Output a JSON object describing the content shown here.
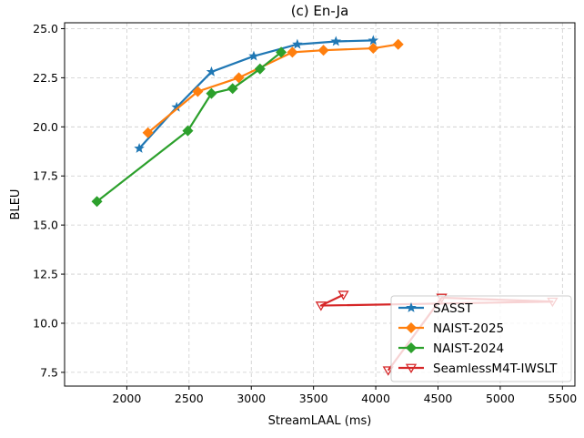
{
  "chart_data": {
    "type": "line",
    "title": "(c) En-Ja",
    "xlabel": "StreamLAAL (ms)",
    "ylabel": "BLEU",
    "xlim": [
      1500,
      5600
    ],
    "ylim": [
      6.8,
      25.3
    ],
    "xticks": [
      2000,
      2500,
      3000,
      3500,
      4000,
      4500,
      5000,
      5500
    ],
    "yticks": [
      7.5,
      10.0,
      12.5,
      15.0,
      17.5,
      20.0,
      22.5,
      25.0
    ],
    "xtick_labels": [
      "2000",
      "2500",
      "3000",
      "3500",
      "4000",
      "4500",
      "5000",
      "5500"
    ],
    "ytick_labels": [
      "7.5",
      "10.0",
      "12.5",
      "15.0",
      "17.5",
      "20.0",
      "22.5",
      "25.0"
    ],
    "grid": true,
    "legend_position": "lower-right",
    "series": [
      {
        "name": "SASST",
        "color": "#1f77b4",
        "marker": "star",
        "x": [
          2100,
          2400,
          2680,
          3020,
          3370,
          3680,
          3980
        ],
        "y": [
          18.9,
          21.0,
          22.8,
          23.6,
          24.2,
          24.35,
          24.4
        ]
      },
      {
        "name": "NAIST-2025",
        "color": "#ff7f0e",
        "marker": "diamond",
        "x": [
          2170,
          2570,
          2900,
          3330,
          3580,
          3980,
          4180
        ],
        "y": [
          19.7,
          21.8,
          22.5,
          23.8,
          23.9,
          24.0,
          24.2
        ]
      },
      {
        "name": "NAIST-2024",
        "color": "#2ca02c",
        "marker": "diamond",
        "x": [
          1760,
          2490,
          2680,
          2850,
          3070,
          3240
        ],
        "y": [
          16.2,
          19.8,
          21.7,
          21.95,
          22.95,
          23.8
        ]
      },
      {
        "name": "SeamlessM4T-IWSLT",
        "color": "#d62728",
        "marker": "triangle-down-open",
        "x": [
          4100,
          4530,
          5420,
          3560,
          3740
        ],
        "y": [
          7.6,
          11.3,
          11.1,
          10.9,
          11.45
        ]
      }
    ]
  }
}
